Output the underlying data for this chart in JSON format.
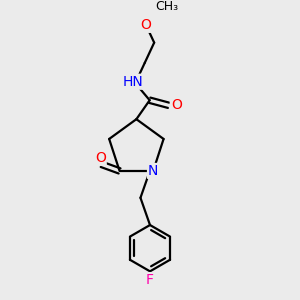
{
  "background_color": "#ebebeb",
  "bond_color": "#000000",
  "atom_colors": {
    "O": "#ff0000",
    "N": "#0000ff",
    "F": "#ff00aa",
    "H": "#008080",
    "C": "#000000"
  },
  "figsize": [
    3.0,
    3.0
  ],
  "dpi": 100,
  "bond_lw": 1.6,
  "font_size": 9.5
}
